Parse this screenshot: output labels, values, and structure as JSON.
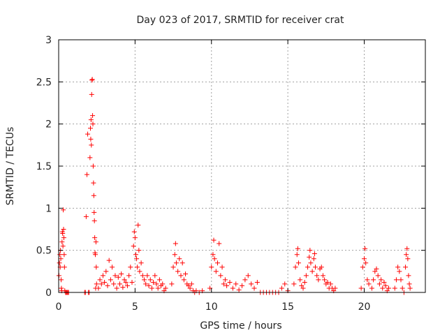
{
  "chart_data": {
    "type": "scatter",
    "title": "Day 023 of 2017, SRMTID for receiver crat",
    "xlabel": "GPS time / hours",
    "ylabel": "SRMTID / TECUs",
    "xlim": [
      0,
      24
    ],
    "ylim": [
      0,
      3
    ],
    "xticks": [
      0,
      5,
      10,
      15,
      20
    ],
    "xtick_labels": [
      "0",
      "5",
      "10",
      "15",
      "20"
    ],
    "yticks": [
      0,
      0.5,
      1,
      1.5,
      2,
      2.5,
      3
    ],
    "ytick_labels": [
      "0",
      "0.5",
      "1",
      "1.5",
      "2",
      "2.5",
      "3"
    ],
    "grid": true,
    "marker": "+",
    "color": "#ff0000",
    "series": [
      {
        "name": "SRMTID",
        "points": [
          [
            0.02,
            0.2
          ],
          [
            0.05,
            0.35
          ],
          [
            0.08,
            0.45
          ],
          [
            0.1,
            0.3
          ],
          [
            0.12,
            0.5
          ],
          [
            0.14,
            0.4
          ],
          [
            0.16,
            0.15
          ],
          [
            0.18,
            0.05
          ],
          [
            0.2,
            0.02
          ],
          [
            0.22,
            0.6
          ],
          [
            0.24,
            0.72
          ],
          [
            0.26,
            0.7
          ],
          [
            0.28,
            0.55
          ],
          [
            0.3,
            0.98
          ],
          [
            0.32,
            0.75
          ],
          [
            0.34,
            0.65
          ],
          [
            0.36,
            0.45
          ],
          [
            0.38,
            0.3
          ],
          [
            0.4,
            0.02
          ],
          [
            0.45,
            0.0
          ],
          [
            0.5,
            0.0
          ],
          [
            0.55,
            0.0
          ],
          [
            0.6,
            0.0
          ],
          [
            0.65,
            0.0
          ],
          [
            1.7,
            0.0
          ],
          [
            1.75,
            0.0
          ],
          [
            1.8,
            0.9
          ],
          [
            1.85,
            1.4
          ],
          [
            1.9,
            1.88
          ],
          [
            1.95,
            0.0
          ],
          [
            2.0,
            0.0
          ],
          [
            2.05,
            1.6
          ],
          [
            2.08,
            1.95
          ],
          [
            2.1,
            1.82
          ],
          [
            2.12,
            2.05
          ],
          [
            2.14,
            1.75
          ],
          [
            2.16,
            2.35
          ],
          [
            2.18,
            2.52
          ],
          [
            2.2,
            2.53
          ],
          [
            2.22,
            2.1
          ],
          [
            2.24,
            2.0
          ],
          [
            2.26,
            1.5
          ],
          [
            2.28,
            1.3
          ],
          [
            2.3,
            1.15
          ],
          [
            2.32,
            0.95
          ],
          [
            2.34,
            0.85
          ],
          [
            2.36,
            0.65
          ],
          [
            2.38,
            0.47
          ],
          [
            2.4,
            0.45
          ],
          [
            2.42,
            0.05
          ],
          [
            2.44,
            0.6
          ],
          [
            2.46,
            0.3
          ],
          [
            2.48,
            0.1
          ],
          [
            2.6,
            0.05
          ],
          [
            2.7,
            0.15
          ],
          [
            2.8,
            0.1
          ],
          [
            2.9,
            0.2
          ],
          [
            3.0,
            0.12
          ],
          [
            3.1,
            0.25
          ],
          [
            3.2,
            0.08
          ],
          [
            3.3,
            0.38
          ],
          [
            3.4,
            0.15
          ],
          [
            3.5,
            0.3
          ],
          [
            3.6,
            0.1
          ],
          [
            3.7,
            0.2
          ],
          [
            3.8,
            0.05
          ],
          [
            3.9,
            0.18
          ],
          [
            4.0,
            0.1
          ],
          [
            4.1,
            0.22
          ],
          [
            4.2,
            0.06
          ],
          [
            4.3,
            0.15
          ],
          [
            4.4,
            0.12
          ],
          [
            4.5,
            0.08
          ],
          [
            4.6,
            0.2
          ],
          [
            4.7,
            0.3
          ],
          [
            4.8,
            0.12
          ],
          [
            4.9,
            0.55
          ],
          [
            4.95,
            0.72
          ],
          [
            5.0,
            0.65
          ],
          [
            5.05,
            0.45
          ],
          [
            5.1,
            0.4
          ],
          [
            5.15,
            0.3
          ],
          [
            5.2,
            0.8
          ],
          [
            5.25,
            0.5
          ],
          [
            5.3,
            0.25
          ],
          [
            5.4,
            0.35
          ],
          [
            5.5,
            0.2
          ],
          [
            5.6,
            0.15
          ],
          [
            5.7,
            0.1
          ],
          [
            5.8,
            0.2
          ],
          [
            5.9,
            0.08
          ],
          [
            6.0,
            0.15
          ],
          [
            6.1,
            0.05
          ],
          [
            6.2,
            0.12
          ],
          [
            6.3,
            0.2
          ],
          [
            6.4,
            0.1
          ],
          [
            6.5,
            0.05
          ],
          [
            6.6,
            0.15
          ],
          [
            6.7,
            0.08
          ],
          [
            6.8,
            0.1
          ],
          [
            6.9,
            0.02
          ],
          [
            7.0,
            0.05
          ],
          [
            7.4,
            0.1
          ],
          [
            7.5,
            0.3
          ],
          [
            7.6,
            0.45
          ],
          [
            7.65,
            0.58
          ],
          [
            7.7,
            0.35
          ],
          [
            7.8,
            0.25
          ],
          [
            7.9,
            0.4
          ],
          [
            8.0,
            0.2
          ],
          [
            8.1,
            0.35
          ],
          [
            8.2,
            0.15
          ],
          [
            8.3,
            0.22
          ],
          [
            8.4,
            0.1
          ],
          [
            8.5,
            0.08
          ],
          [
            8.6,
            0.05
          ],
          [
            8.7,
            0.1
          ],
          [
            8.8,
            0.02
          ],
          [
            8.9,
            0.0
          ],
          [
            9.0,
            0.02
          ],
          [
            9.2,
            0.0
          ],
          [
            9.4,
            0.02
          ],
          [
            9.9,
            0.05
          ],
          [
            10.0,
            0.3
          ],
          [
            10.1,
            0.45
          ],
          [
            10.15,
            0.62
          ],
          [
            10.2,
            0.4
          ],
          [
            10.3,
            0.25
          ],
          [
            10.4,
            0.35
          ],
          [
            10.5,
            0.58
          ],
          [
            10.6,
            0.2
          ],
          [
            10.7,
            0.3
          ],
          [
            10.8,
            0.1
          ],
          [
            10.9,
            0.15
          ],
          [
            11.0,
            0.08
          ],
          [
            11.2,
            0.12
          ],
          [
            11.4,
            0.05
          ],
          [
            11.6,
            0.1
          ],
          [
            11.8,
            0.03
          ],
          [
            12.0,
            0.08
          ],
          [
            12.2,
            0.15
          ],
          [
            12.4,
            0.2
          ],
          [
            12.6,
            0.1
          ],
          [
            12.8,
            0.05
          ],
          [
            13.0,
            0.12
          ],
          [
            13.2,
            0.0
          ],
          [
            13.4,
            0.0
          ],
          [
            13.6,
            0.0
          ],
          [
            13.8,
            0.0
          ],
          [
            14.0,
            0.0
          ],
          [
            14.2,
            0.0
          ],
          [
            14.4,
            0.0
          ],
          [
            14.6,
            0.05
          ],
          [
            14.8,
            0.1
          ],
          [
            15.0,
            0.02
          ],
          [
            15.4,
            0.1
          ],
          [
            15.5,
            0.3
          ],
          [
            15.6,
            0.45
          ],
          [
            15.65,
            0.52
          ],
          [
            15.7,
            0.35
          ],
          [
            15.8,
            0.15
          ],
          [
            15.9,
            0.08
          ],
          [
            16.0,
            0.05
          ],
          [
            16.1,
            0.12
          ],
          [
            16.2,
            0.2
          ],
          [
            16.3,
            0.3
          ],
          [
            16.4,
            0.42
          ],
          [
            16.45,
            0.5
          ],
          [
            16.5,
            0.35
          ],
          [
            16.6,
            0.25
          ],
          [
            16.7,
            0.4
          ],
          [
            16.75,
            0.46
          ],
          [
            16.8,
            0.3
          ],
          [
            16.9,
            0.2
          ],
          [
            17.0,
            0.15
          ],
          [
            17.1,
            0.28
          ],
          [
            17.2,
            0.3
          ],
          [
            17.3,
            0.2
          ],
          [
            17.4,
            0.15
          ],
          [
            17.5,
            0.1
          ],
          [
            17.6,
            0.12
          ],
          [
            17.7,
            0.05
          ],
          [
            17.8,
            0.1
          ],
          [
            17.9,
            0.05
          ],
          [
            18.0,
            0.02
          ],
          [
            18.1,
            0.05
          ],
          [
            19.8,
            0.05
          ],
          [
            19.9,
            0.3
          ],
          [
            20.0,
            0.4
          ],
          [
            20.05,
            0.52
          ],
          [
            20.1,
            0.35
          ],
          [
            20.2,
            0.15
          ],
          [
            20.3,
            0.1
          ],
          [
            20.5,
            0.05
          ],
          [
            20.6,
            0.15
          ],
          [
            20.7,
            0.25
          ],
          [
            20.8,
            0.28
          ],
          [
            20.9,
            0.2
          ],
          [
            21.0,
            0.1
          ],
          [
            21.1,
            0.15
          ],
          [
            21.2,
            0.05
          ],
          [
            21.3,
            0.12
          ],
          [
            21.4,
            0.08
          ],
          [
            21.5,
            0.02
          ],
          [
            21.6,
            0.05
          ],
          [
            22.0,
            0.05
          ],
          [
            22.1,
            0.15
          ],
          [
            22.2,
            0.3
          ],
          [
            22.3,
            0.25
          ],
          [
            22.4,
            0.15
          ],
          [
            22.5,
            0.05
          ],
          [
            22.6,
            0.0
          ],
          [
            22.7,
            0.3
          ],
          [
            22.75,
            0.45
          ],
          [
            22.8,
            0.52
          ],
          [
            22.85,
            0.4
          ],
          [
            22.9,
            0.2
          ],
          [
            22.95,
            0.1
          ],
          [
            23.0,
            0.05
          ]
        ]
      }
    ]
  }
}
